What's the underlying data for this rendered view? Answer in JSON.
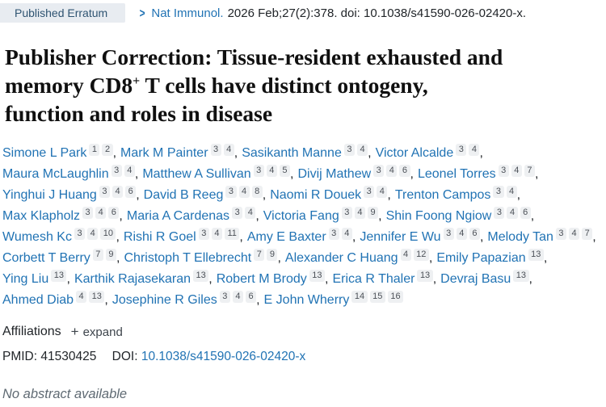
{
  "header": {
    "publication_type": "Published Erratum",
    "chevron": ">",
    "journal_link": "Nat Immunol.",
    "citation_rest": "2026 Feb;27(2):378. doi: 10.1038/s41590-026-02420-x."
  },
  "title": {
    "full_text": "Publisher Correction: Tissue-resident exhausted and memory CD8+ T cells have distinct ontogeny, function and roles in disease",
    "lines": [
      [
        {
          "text": "Publisher Correction: Tissue-resident exhausted and"
        }
      ],
      [
        {
          "text": "memory CD8"
        },
        {
          "sup": "+"
        },
        {
          "text": " T cells have distinct ontogeny,"
        }
      ],
      [
        {
          "text": "function and roles in disease"
        }
      ]
    ]
  },
  "authors": {
    "list": [
      {
        "name": "Simone L Park",
        "affiliations": [
          "1",
          "2"
        ]
      },
      {
        "name": "Mark M Painter",
        "affiliations": [
          "3",
          "4"
        ]
      },
      {
        "name": "Sasikanth Manne",
        "affiliations": [
          "3",
          "4"
        ]
      },
      {
        "name": "Victor Alcalde",
        "affiliations": [
          "3",
          "4"
        ]
      },
      {
        "name": "Maura McLaughlin",
        "affiliations": [
          "3",
          "4"
        ]
      },
      {
        "name": "Matthew A Sullivan",
        "affiliations": [
          "3",
          "4",
          "5"
        ]
      },
      {
        "name": "Divij Mathew",
        "affiliations": [
          "3",
          "4",
          "6"
        ]
      },
      {
        "name": "Leonel Torres",
        "affiliations": [
          "3",
          "4",
          "7"
        ]
      },
      {
        "name": "Yinghui J Huang",
        "affiliations": [
          "3",
          "4",
          "6"
        ]
      },
      {
        "name": "David B Reeg",
        "affiliations": [
          "3",
          "4",
          "8"
        ]
      },
      {
        "name": "Naomi R Douek",
        "affiliations": [
          "3",
          "4"
        ]
      },
      {
        "name": "Trenton Campos",
        "affiliations": [
          "3",
          "4"
        ]
      },
      {
        "name": "Max Klapholz",
        "affiliations": [
          "3",
          "4",
          "6"
        ]
      },
      {
        "name": "Maria A Cardenas",
        "affiliations": [
          "3",
          "4"
        ]
      },
      {
        "name": "Victoria Fang",
        "affiliations": [
          "3",
          "4",
          "9"
        ]
      },
      {
        "name": "Shin Foong Ngiow",
        "affiliations": [
          "3",
          "4",
          "6"
        ]
      },
      {
        "name": "Wumesh Kc",
        "affiliations": [
          "3",
          "4",
          "10"
        ]
      },
      {
        "name": "Rishi R Goel",
        "affiliations": [
          "3",
          "4",
          "11"
        ]
      },
      {
        "name": "Amy E Baxter",
        "affiliations": [
          "3",
          "4"
        ]
      },
      {
        "name": "Jennifer E Wu",
        "affiliations": [
          "3",
          "4",
          "6"
        ]
      },
      {
        "name": "Melody Tan",
        "affiliations": [
          "3",
          "4",
          "7"
        ]
      },
      {
        "name": "Corbett T Berry",
        "affiliations": [
          "7",
          "9"
        ]
      },
      {
        "name": "Christoph T Ellebrecht",
        "affiliations": [
          "7",
          "9"
        ]
      },
      {
        "name": "Alexander C Huang",
        "affiliations": [
          "4",
          "12"
        ]
      },
      {
        "name": "Emily Papazian",
        "affiliations": [
          "13"
        ]
      },
      {
        "name": "Ying Liu",
        "affiliations": [
          "13"
        ]
      },
      {
        "name": "Karthik Rajasekaran",
        "affiliations": [
          "13"
        ]
      },
      {
        "name": "Robert M Brody",
        "affiliations": [
          "13"
        ]
      },
      {
        "name": "Erica R Thaler",
        "affiliations": [
          "13"
        ]
      },
      {
        "name": "Devraj Basu",
        "affiliations": [
          "13"
        ]
      },
      {
        "name": "Ahmed Diab",
        "affiliations": [
          "4",
          "13"
        ]
      },
      {
        "name": "Josephine R Giles",
        "affiliations": [
          "3",
          "4",
          "6"
        ]
      },
      {
        "name": "E John Wherry",
        "affiliations": [
          "14",
          "15",
          "16"
        ]
      }
    ],
    "separator": ", "
  },
  "affiliations": {
    "label": "Affiliations",
    "expand_icon": "+",
    "expand_label": "expand"
  },
  "identifiers": {
    "pmid_label": "PMID:",
    "pmid_value": "41530425",
    "doi_label": "DOI:",
    "doi_value": "10.1038/s41590-026-02420-x"
  },
  "abstract": {
    "notice": "No abstract available"
  },
  "colors": {
    "link_blue": "#2173b4",
    "badge_background": "#e8ecf1",
    "badge_text": "#2f5472",
    "aff_badge_background": "#eef0f2",
    "aff_badge_text": "#4c5158",
    "muted_text": "#5f6a73"
  }
}
